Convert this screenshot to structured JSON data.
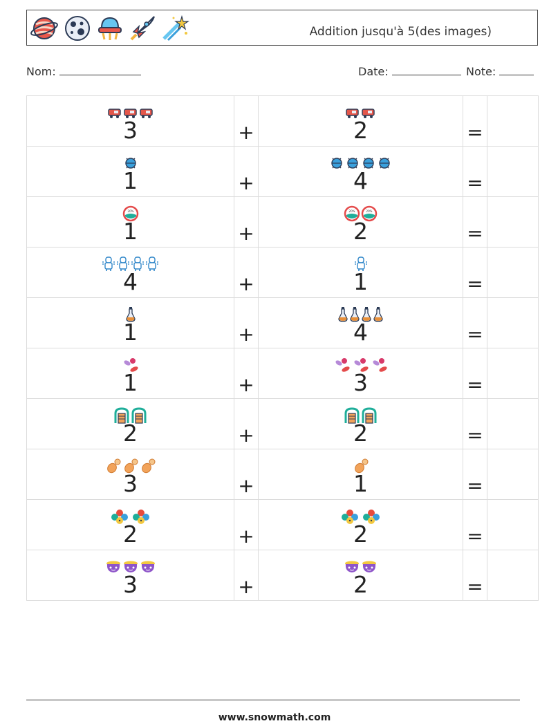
{
  "header": {
    "title": "Addition jusqu'à 5(des images)",
    "icons": [
      "planet-icon",
      "moon-icon",
      "ufo-icon",
      "rocket-icon",
      "shooting-star-icon"
    ]
  },
  "meta": {
    "name_label": "Nom:",
    "date_label": "Date:",
    "note_label": "Note:"
  },
  "symbols": {
    "plus": "+",
    "equals": "="
  },
  "problems": [
    {
      "a": "3",
      "b": "2",
      "icon": "rover-icon"
    },
    {
      "a": "1",
      "b": "4",
      "icon": "satellite-probe-icon"
    },
    {
      "a": "1",
      "b": "2",
      "icon": "planet-globe-icon"
    },
    {
      "a": "4",
      "b": "1",
      "icon": "astronaut-icon"
    },
    {
      "a": "1",
      "b": "4",
      "icon": "flask-icon"
    },
    {
      "a": "1",
      "b": "3",
      "icon": "meteor-icon"
    },
    {
      "a": "2",
      "b": "2",
      "icon": "space-station-icon"
    },
    {
      "a": "3",
      "b": "1",
      "icon": "asteroid-icon"
    },
    {
      "a": "2",
      "b": "2",
      "icon": "planets-cluster-icon"
    },
    {
      "a": "3",
      "b": "2",
      "icon": "cauldron-icon"
    }
  ],
  "colors": {
    "rover": "#e4574b",
    "probe": "#3aa0dc",
    "globe": "#e44b4b",
    "astronaut": "#2f86c9",
    "flask": "#e8903a",
    "meteor": "#d83a6a",
    "station": "#1fae9a",
    "asteroid": "#f2a35a",
    "cluster": "#e84b3c",
    "cauldron": "#8e55c9"
  },
  "footer": {
    "url": "www.snowmath.com"
  }
}
